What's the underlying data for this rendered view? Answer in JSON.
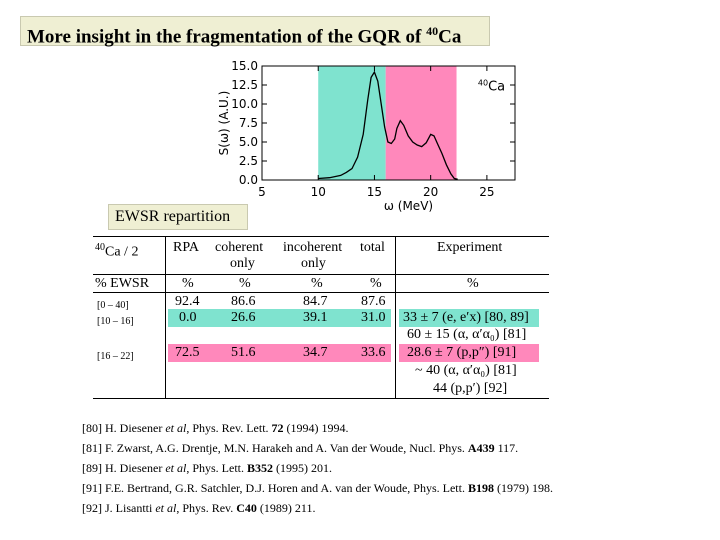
{
  "title": {
    "text": "More insight in the fragmentation of the GQR of ",
    "sup": "40",
    "suffix": "Ca"
  },
  "ewsr_label": "EWSR repartition",
  "chart_data": {
    "type": "line",
    "xlabel": "ω (MeV)",
    "ylabel": "S(ω) (A.U.)",
    "annotation": "40Ca",
    "annotation_sup": "40",
    "annotation_text": "Ca",
    "xlim": [
      5,
      27.5
    ],
    "ylim": [
      0,
      15
    ],
    "x_ticks": [
      "5",
      "10",
      "15",
      "20",
      "25"
    ],
    "y_ticks": [
      "0.0",
      "2.5",
      "5.0",
      "7.5",
      "10.0",
      "12.5",
      "15.0"
    ],
    "shaded_regions": [
      {
        "from": 10,
        "to": 16,
        "color": "#7fe3cf"
      },
      {
        "from": 16,
        "to": 22.3,
        "color": "#ff88bb"
      }
    ],
    "x": [
      10.0,
      11.0,
      12.0,
      12.5,
      13.0,
      13.5,
      14.0,
      14.4,
      14.7,
      15.0,
      15.3,
      15.6,
      15.9,
      16.2,
      16.5,
      16.8,
      17.0,
      17.3,
      17.6,
      18.0,
      18.4,
      18.8,
      19.2,
      19.6,
      20.0,
      20.3,
      20.6,
      21.0,
      21.4,
      21.8,
      22.1,
      22.4
    ],
    "y": [
      0.2,
      0.3,
      0.6,
      1.0,
      1.5,
      3.0,
      6.0,
      10.5,
      13.5,
      14.2,
      13.0,
      10.0,
      7.0,
      5.0,
      4.8,
      5.4,
      6.8,
      7.8,
      7.2,
      5.8,
      5.0,
      4.6,
      4.4,
      4.9,
      6.0,
      5.8,
      4.8,
      3.5,
      2.0,
      0.8,
      0.2,
      0.1
    ]
  },
  "table": {
    "header": {
      "nucleus_sup": "40",
      "nucleus": "Ca / 2",
      "col1": "RPA",
      "col2a": "coherent",
      "col2b": "only",
      "col3a": "incoherent",
      "col3b": "only",
      "col4": "total",
      "col5": "Experiment"
    },
    "units_row": {
      "label": "% EWSR",
      "c1": "%",
      "c2": "%",
      "c3": "%",
      "c4": "%",
      "c5": "%"
    },
    "rows": [
      {
        "range": "[0 – 40]",
        "rpa": "92.4",
        "coh": "86.6",
        "incoh": "84.7",
        "total": "87.6",
        "color": ""
      },
      {
        "range": "[10 – 16]",
        "rpa": "0.0",
        "coh": "26.6",
        "incoh": "39.1",
        "total": "31.0",
        "color": "#7fe3cf"
      },
      {
        "range": "[16 – 22]",
        "rpa": "72.5",
        "coh": "51.6",
        "incoh": "34.7",
        "total": "33.6",
        "color": "#ff88bb"
      }
    ],
    "experiment": [
      "33 ± 7 (e, e′x) [80, 89]",
      "60 ± 15 (α, α′α₀) [81]",
      "28.6 ± 7 (p,p″) [91]",
      "~ 40 (α, α′α₀) [81]",
      "44 (p,p′) [92]"
    ]
  },
  "references": [
    {
      "tag": "[80]",
      "authors": "H. Diesener ",
      "etal": "et al",
      "journal": ", Phys. Rev. Lett. ",
      "vol": "72",
      "rest": " (1994) 1994."
    },
    {
      "tag": "[81]",
      "authors": "F. Zwarst, A.G. Drentje, M.N. Harakeh and A. Van der Woude, Nucl. Phys. ",
      "etal": "",
      "journal": "",
      "vol": "A439",
      "rest": " 117."
    },
    {
      "tag": "[89]",
      "authors": "H. Diesener ",
      "etal": "et al",
      "journal": ", Phys. Lett. ",
      "vol": "B352",
      "rest": " (1995) 201."
    },
    {
      "tag": "[91]",
      "authors": "F.E. Bertrand, G.R. Satchler, D.J. Horen and A. van der Woude, Phys. Lett. ",
      "etal": "",
      "journal": "",
      "vol": "B198",
      "rest": " (1979) 198."
    },
    {
      "tag": "[92]",
      "authors": "J. Lisantti ",
      "etal": "et al",
      "journal": ", Phys. Rev. ",
      "vol": "C40",
      "rest": " (1989) 211."
    }
  ]
}
